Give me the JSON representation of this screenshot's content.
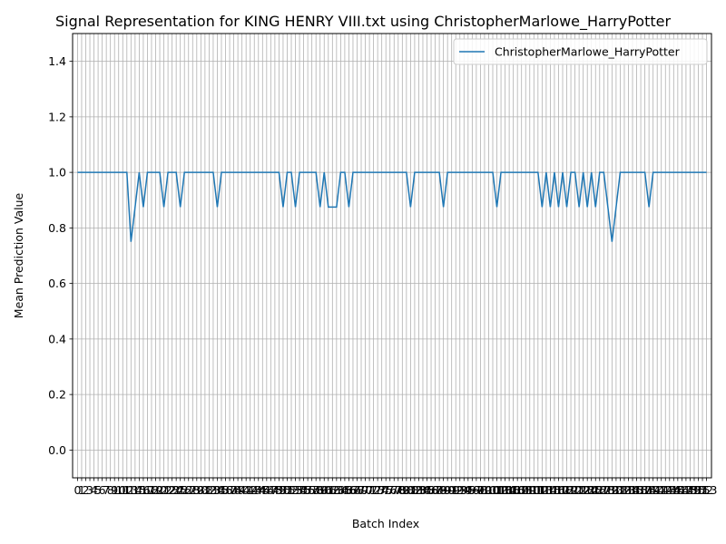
{
  "chart_data": {
    "type": "line",
    "title": "Signal Representation for KING HENRY VIII.txt using ChristopherMarlowe_HarryPotter",
    "xlabel": "Batch Index",
    "ylabel": "Mean Prediction Value",
    "ylim": [
      -0.1,
      1.5
    ],
    "yticks": [
      "0.0",
      "0.2",
      "0.4",
      "0.6",
      "0.8",
      "1.0",
      "1.2",
      "1.4"
    ],
    "xlim": [
      -1.2,
      154.2
    ],
    "x_first": 0,
    "x_last": 153,
    "grid": true,
    "legend_position": "upper-right",
    "xtick_labels": [
      "0",
      "1",
      "2",
      "3",
      "4",
      "5",
      "6",
      "7",
      "8",
      "9",
      "10",
      "11",
      "12",
      "13",
      "14",
      "15",
      "16",
      "17",
      "18",
      "19",
      "20",
      "21",
      "22",
      "23",
      "24",
      "25",
      "26",
      "27",
      "28",
      "29",
      "30",
      "31",
      "32",
      "33",
      "34",
      "35",
      "36",
      "37",
      "38",
      "39",
      "40",
      "41",
      "42",
      "43",
      "44",
      "45",
      "46",
      "47",
      "48",
      "49",
      "50",
      "51",
      "52",
      "53",
      "54",
      "55",
      "56",
      "57",
      "58",
      "59",
      "60",
      "61",
      "62",
      "63",
      "64",
      "65",
      "66",
      "67",
      "68",
      "69",
      "70",
      "71",
      "72",
      "73",
      "74",
      "75",
      "76",
      "77",
      "78",
      "79",
      "80",
      "81",
      "82",
      "83",
      "84",
      "85",
      "86",
      "87",
      "88",
      "89",
      "90",
      "91",
      "92",
      "93",
      "94",
      "95",
      "96",
      "97",
      "98",
      "99",
      "100",
      "101",
      "102",
      "103",
      "104",
      "105",
      "106",
      "107",
      "108",
      "109",
      "110",
      "111",
      "112",
      "113",
      "114",
      "115",
      "116",
      "117",
      "118",
      "119",
      "120",
      "121",
      "122",
      "123",
      "124",
      "125",
      "126",
      "127",
      "128",
      "129",
      "130",
      "131",
      "132",
      "133",
      "134",
      "135",
      "136",
      "137",
      "138",
      "139",
      "140",
      "141",
      "142",
      "143",
      "144",
      "145",
      "146",
      "147",
      "148",
      "149",
      "150",
      "151",
      "152",
      "153"
    ],
    "series": [
      {
        "name": "ChristopherMarlowe_HarryPotter",
        "color": "#1f77b4",
        "dips": {
          "13": 0.75,
          "14": 0.875,
          "15": 1.0,
          "16": 0.875,
          "21": 0.875,
          "25": 0.875,
          "34": 0.875,
          "50": 0.875,
          "53": 0.875,
          "59": 0.875,
          "60": 1.0,
          "61": 0.875,
          "62": 0.875,
          "63": 0.875,
          "65": 1.0,
          "66": 0.875,
          "81": 0.875,
          "89": 0.875,
          "102": 0.875,
          "113": 0.875,
          "115": 0.875,
          "117": 0.875,
          "119": 0.875,
          "122": 0.875,
          "124": 0.875,
          "126": 0.875,
          "129": 0.875,
          "130": 0.75,
          "131": 0.875,
          "139": 0.875
        },
        "default_value": 1.0
      }
    ]
  }
}
